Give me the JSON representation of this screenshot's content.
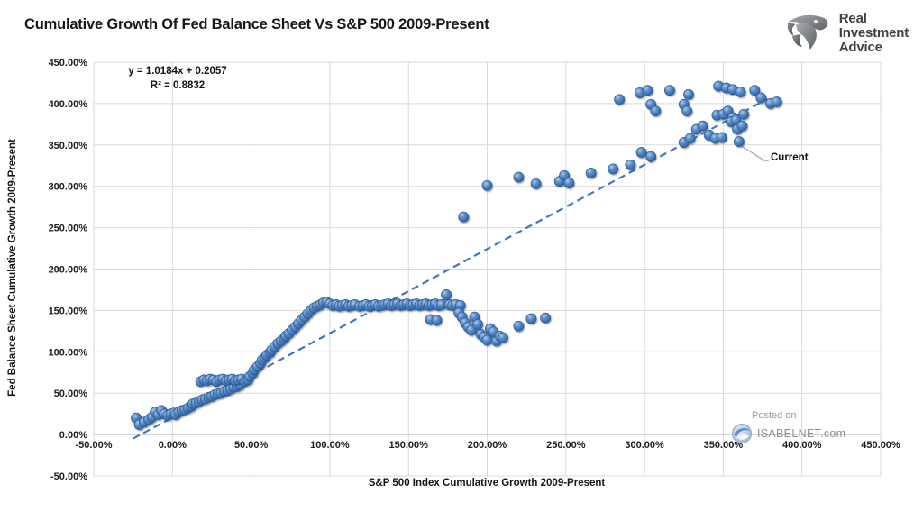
{
  "header": {
    "logo": {
      "line1": "Real",
      "line2": "Investment",
      "line3": "Advice"
    }
  },
  "watermark": {
    "posted_on": "Posted on",
    "site": "ISABELNET.com"
  },
  "chart_data": {
    "type": "scatter",
    "title": "Cumulative Growth Of Fed Balance Sheet Vs S&P 500 2009-Present",
    "xlabel": "S&P 500 Index Cumulative Growth 2009-Present",
    "ylabel": "Fed Balance Sheet Cumulative Growth 2009-Present",
    "xlim": [
      -50,
      450
    ],
    "ylim": [
      -50,
      450
    ],
    "grid": true,
    "x_ticks": [
      -50,
      0,
      50,
      100,
      150,
      200,
      250,
      300,
      350,
      400,
      450
    ],
    "y_ticks": [
      -50,
      0,
      50,
      100,
      150,
      200,
      250,
      300,
      350,
      400,
      450
    ],
    "x_tick_labels": [
      "-50.00%",
      "0.00%",
      "50.00%",
      "100.00%",
      "150.00%",
      "200.00%",
      "250.00%",
      "300.00%",
      "350.00%",
      "400.00%",
      "450.00%"
    ],
    "y_tick_labels": [
      "-50.00%",
      "0.00%",
      "50.00%",
      "100.00%",
      "150.00%",
      "200.00%",
      "250.00%",
      "300.00%",
      "350.00%",
      "400.00%",
      "450.00%"
    ],
    "equation": {
      "line1": "y = 1.0184x + 0.2057",
      "line2": "R² = 0.8832",
      "slope": 1.0184,
      "intercept_pct": 20.57
    },
    "trendline": {
      "style": "dashed",
      "color": "#4576b8",
      "x_start": -25,
      "x_end": 378
    },
    "marker_color": "#4a80c0",
    "grid_color": "#d9d9d9",
    "annotation": {
      "label": "Current",
      "point": [
        360,
        354
      ]
    },
    "points": [
      [
        -23,
        20
      ],
      [
        -21,
        12
      ],
      [
        -18,
        15
      ],
      [
        -15,
        18
      ],
      [
        -13,
        21
      ],
      [
        -11,
        27
      ],
      [
        -9,
        24
      ],
      [
        -7,
        29
      ],
      [
        -5,
        25
      ],
      [
        -3,
        23
      ],
      [
        -1,
        25
      ],
      [
        1,
        26
      ],
      [
        2,
        24
      ],
      [
        4,
        27
      ],
      [
        6,
        29
      ],
      [
        8,
        30
      ],
      [
        10,
        32
      ],
      [
        12,
        34
      ],
      [
        13,
        37
      ],
      [
        15,
        38
      ],
      [
        17,
        40
      ],
      [
        19,
        42
      ],
      [
        21,
        43
      ],
      [
        23,
        45
      ],
      [
        25,
        46
      ],
      [
        27,
        48
      ],
      [
        29,
        49
      ],
      [
        31,
        50
      ],
      [
        33,
        52
      ],
      [
        35,
        53
      ],
      [
        37,
        55
      ],
      [
        39,
        57
      ],
      [
        41,
        58
      ],
      [
        43,
        60
      ],
      [
        18,
        64
      ],
      [
        20,
        66
      ],
      [
        22,
        65
      ],
      [
        24,
        67
      ],
      [
        26,
        66
      ],
      [
        28,
        64
      ],
      [
        30,
        66
      ],
      [
        32,
        67
      ],
      [
        34,
        65
      ],
      [
        36,
        66
      ],
      [
        38,
        67
      ],
      [
        40,
        65
      ],
      [
        42,
        66
      ],
      [
        44,
        67
      ],
      [
        46,
        64
      ],
      [
        48,
        66
      ],
      [
        49,
        70
      ],
      [
        51,
        74
      ],
      [
        52,
        78
      ],
      [
        54,
        82
      ],
      [
        56,
        86
      ],
      [
        57,
        90
      ],
      [
        59,
        93
      ],
      [
        60,
        96
      ],
      [
        62,
        99
      ],
      [
        63,
        102
      ],
      [
        65,
        106
      ],
      [
        67,
        110
      ],
      [
        69,
        113
      ],
      [
        71,
        116
      ],
      [
        72,
        119
      ],
      [
        74,
        122
      ],
      [
        76,
        126
      ],
      [
        78,
        130
      ],
      [
        80,
        134
      ],
      [
        82,
        138
      ],
      [
        84,
        142
      ],
      [
        86,
        146
      ],
      [
        88,
        150
      ],
      [
        90,
        153
      ],
      [
        92,
        155
      ],
      [
        94,
        157
      ],
      [
        96,
        159
      ],
      [
        98,
        160
      ],
      [
        100,
        158
      ],
      [
        102,
        156
      ],
      [
        104,
        157
      ],
      [
        106,
        155
      ],
      [
        108,
        156
      ],
      [
        110,
        157
      ],
      [
        112,
        155
      ],
      [
        114,
        156
      ],
      [
        116,
        157
      ],
      [
        119,
        155
      ],
      [
        121,
        156
      ],
      [
        123,
        157
      ],
      [
        125,
        155
      ],
      [
        127,
        156
      ],
      [
        129,
        157
      ],
      [
        131,
        155
      ],
      [
        133,
        156
      ],
      [
        135,
        157
      ],
      [
        137,
        158
      ],
      [
        139,
        156
      ],
      [
        141,
        157
      ],
      [
        143,
        158
      ],
      [
        145,
        156
      ],
      [
        147,
        157
      ],
      [
        149,
        158
      ],
      [
        151,
        156
      ],
      [
        153,
        157
      ],
      [
        155,
        158
      ],
      [
        157,
        156
      ],
      [
        159,
        157
      ],
      [
        161,
        158
      ],
      [
        163,
        156
      ],
      [
        165,
        157
      ],
      [
        167,
        158
      ],
      [
        169,
        156
      ],
      [
        171,
        157
      ],
      [
        174,
        169
      ],
      [
        176,
        157
      ],
      [
        178,
        156
      ],
      [
        180,
        157
      ],
      [
        183,
        156
      ],
      [
        164,
        139
      ],
      [
        168,
        138
      ],
      [
        182,
        147
      ],
      [
        184,
        142
      ],
      [
        186,
        135
      ],
      [
        188,
        130
      ],
      [
        190,
        126
      ],
      [
        192,
        142
      ],
      [
        194,
        133
      ],
      [
        196,
        121
      ],
      [
        198,
        118
      ],
      [
        200,
        114
      ],
      [
        202,
        128
      ],
      [
        204,
        124
      ],
      [
        206,
        113
      ],
      [
        208,
        119
      ],
      [
        210,
        117
      ],
      [
        220,
        131
      ],
      [
        228,
        140
      ],
      [
        237,
        141
      ],
      [
        185,
        263
      ],
      [
        200,
        301
      ],
      [
        220,
        311
      ],
      [
        231,
        303
      ],
      [
        246,
        306
      ],
      [
        249,
        313
      ],
      [
        252,
        304
      ],
      [
        266,
        316
      ],
      [
        280,
        321
      ],
      [
        291,
        326
      ],
      [
        298,
        341
      ],
      [
        304,
        336
      ],
      [
        284,
        405
      ],
      [
        297,
        413
      ],
      [
        302,
        416
      ],
      [
        304,
        399
      ],
      [
        307,
        391
      ],
      [
        316,
        416
      ],
      [
        325,
        399
      ],
      [
        327,
        391
      ],
      [
        328,
        411
      ],
      [
        346,
        386
      ],
      [
        350,
        387
      ],
      [
        353,
        391
      ],
      [
        356,
        383
      ],
      [
        347,
        421
      ],
      [
        352,
        419
      ],
      [
        356,
        417
      ],
      [
        361,
        414
      ],
      [
        370,
        416
      ],
      [
        374,
        407
      ],
      [
        380,
        400
      ],
      [
        384,
        402
      ],
      [
        325,
        353
      ],
      [
        329,
        358
      ],
      [
        333,
        369
      ],
      [
        337,
        373
      ],
      [
        341,
        362
      ],
      [
        345,
        358
      ],
      [
        349,
        359
      ],
      [
        355,
        378
      ],
      [
        358,
        380
      ],
      [
        359,
        369
      ],
      [
        362,
        373
      ],
      [
        363,
        387
      ],
      [
        360,
        354
      ]
    ]
  }
}
